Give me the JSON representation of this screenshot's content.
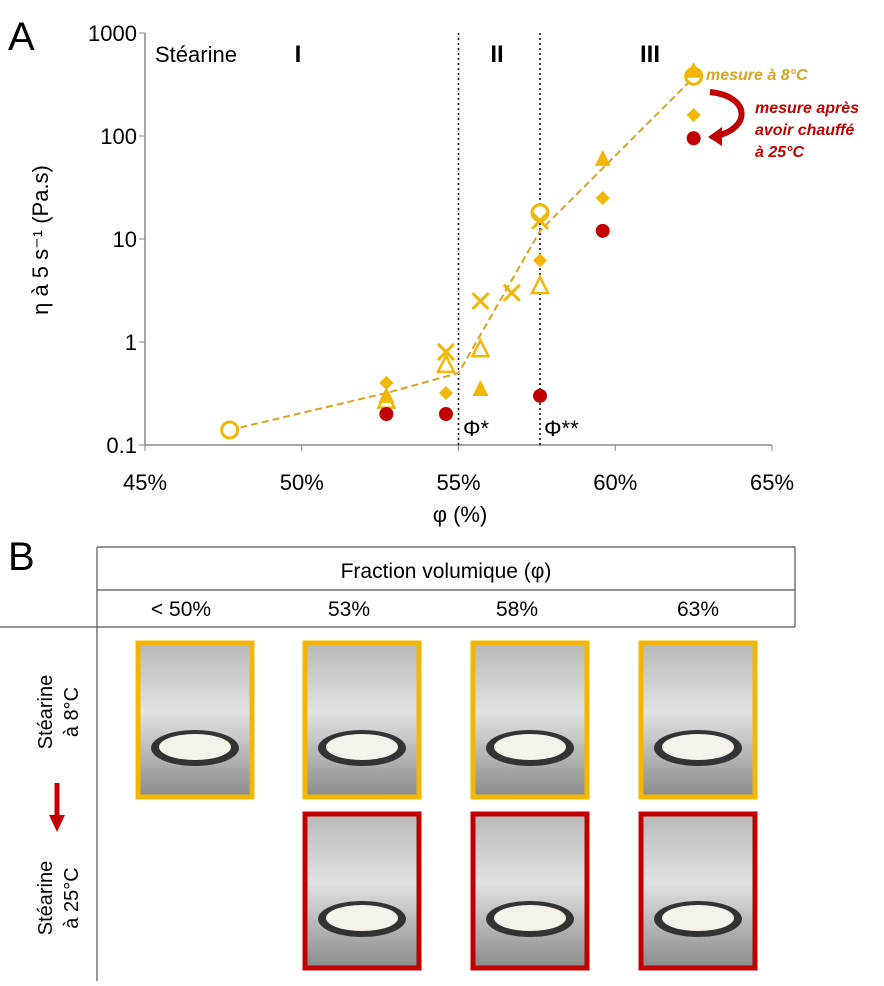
{
  "chart_data": {
    "type": "scatter",
    "y_label": "η à 5 s⁻¹ (Pa.s)",
    "x_label": "φ (%)",
    "xlim": [
      45,
      65
    ],
    "xticks": [
      {
        "value": 45,
        "label": "45%"
      },
      {
        "value": 50,
        "label": "50%"
      },
      {
        "value": 55,
        "label": "55%"
      },
      {
        "value": 60,
        "label": "60%"
      },
      {
        "value": 65,
        "label": "65%"
      }
    ],
    "ylim": [
      0.1,
      1000
    ],
    "yticks": [
      0.1,
      1,
      10,
      100,
      1000
    ],
    "log_y": true,
    "vlines": [
      55,
      57.6
    ],
    "annotations": [
      "Stéarine",
      "I",
      "II",
      "III",
      "Φ*",
      "Φ**",
      "mesure à 8°C",
      "mesure après",
      "avoir chauffé",
      "à 25°C"
    ],
    "series": [
      {
        "color": "#d9a520",
        "line": "dashed",
        "x": [
          47.7,
          52.7,
          55,
          57.6,
          62.5
        ],
        "values": [
          0.14,
          0.32,
          0.5,
          12,
          370
        ]
      },
      {
        "color": "#f2b705",
        "marker": "circle-open",
        "x": [
          47.7,
          57.6,
          62.5
        ],
        "values": [
          0.14,
          18,
          380
        ]
      },
      {
        "color": "#f2b705",
        "marker": "triangle-open",
        "x": [
          52.7,
          54.6,
          55.7,
          57.6
        ],
        "values": [
          0.27,
          0.6,
          0.85,
          3.5
        ]
      },
      {
        "color": "#f2b705",
        "marker": "cross",
        "x": [
          54.6,
          55.7,
          56.7,
          57.6
        ],
        "values": [
          0.8,
          2.5,
          3.0,
          15
        ]
      },
      {
        "color": "#f2b705",
        "marker": "diamond",
        "x": [
          52.7,
          54.6,
          57.6,
          59.6,
          62.5
        ],
        "values": [
          0.4,
          0.32,
          6.2,
          25,
          160
        ]
      },
      {
        "color": "#f2b705",
        "marker": "triangle",
        "x": [
          52.7,
          55.7,
          59.6,
          62.5
        ],
        "values": [
          0.3,
          0.35,
          60,
          430
        ]
      },
      {
        "color": "#c00000",
        "marker": "circle",
        "x": [
          52.7,
          54.6,
          57.6,
          59.6,
          62.5
        ],
        "values": [
          0.2,
          0.2,
          0.3,
          12,
          95
        ]
      }
    ]
  },
  "panel_labels": [
    "A",
    "B"
  ],
  "table": {
    "header": "Fraction volumique (φ)",
    "columns": [
      "< 50%",
      "53%",
      "58%",
      "63%"
    ],
    "rows": [
      [
        "Stéarine",
        "à 8°C"
      ],
      [
        "Stéarine",
        "à 25°C"
      ]
    ]
  }
}
